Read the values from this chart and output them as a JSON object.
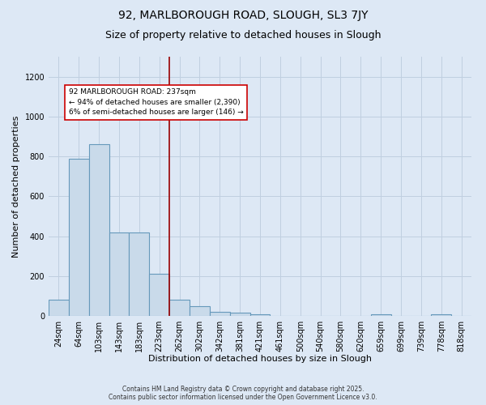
{
  "title1": "92, MARLBOROUGH ROAD, SLOUGH, SL3 7JY",
  "title2": "Size of property relative to detached houses in Slough",
  "xlabel": "Distribution of detached houses by size in Slough",
  "ylabel": "Number of detached properties",
  "bar_labels": [
    "24sqm",
    "64sqm",
    "103sqm",
    "143sqm",
    "183sqm",
    "223sqm",
    "262sqm",
    "302sqm",
    "342sqm",
    "381sqm",
    "421sqm",
    "461sqm",
    "500sqm",
    "540sqm",
    "580sqm",
    "620sqm",
    "659sqm",
    "699sqm",
    "739sqm",
    "778sqm",
    "818sqm"
  ],
  "bar_heights": [
    80,
    790,
    860,
    420,
    420,
    210,
    80,
    50,
    20,
    15,
    10,
    0,
    0,
    0,
    0,
    0,
    10,
    0,
    0,
    10,
    0
  ],
  "bar_color": "#c9daea",
  "bar_edge_color": "#6699bb",
  "bar_edge_width": 0.8,
  "vline_x": 5.5,
  "vline_color": "#990000",
  "vline_linewidth": 1.2,
  "annotation_text": "92 MARLBOROUGH ROAD: 237sqm\n← 94% of detached houses are smaller (2,390)\n6% of semi-detached houses are larger (146) →",
  "annot_fontsize": 6.5,
  "bg_color": "#dde8f5",
  "grid_color": "#c0cfe0",
  "ylim": [
    0,
    1300
  ],
  "yticks": [
    0,
    200,
    400,
    600,
    800,
    1000,
    1200
  ],
  "footnote": "Contains HM Land Registry data © Crown copyright and database right 2025.\nContains public sector information licensed under the Open Government Licence v3.0.",
  "title1_fontsize": 10,
  "title2_fontsize": 9,
  "xlabel_fontsize": 8,
  "ylabel_fontsize": 8,
  "tick_fontsize": 7,
  "footnote_fontsize": 5.5
}
